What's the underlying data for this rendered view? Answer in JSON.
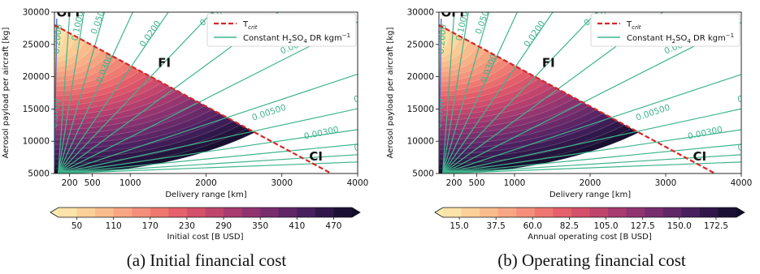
{
  "chart_data": [
    {
      "type": "heatmap",
      "panel": "a",
      "caption": "(a) Initial financial cost",
      "xlabel": "Delivery range [km]",
      "ylabel": "Aerosol payload per aircraft [kg]",
      "xlim": [
        0,
        4000
      ],
      "ylim": [
        5000,
        30000
      ],
      "x_ticks": [
        200,
        500,
        1000,
        2000,
        3000,
        4000
      ],
      "y_ticks": [
        5000,
        10000,
        15000,
        20000,
        25000,
        30000
      ],
      "t_crit_line": {
        "x": [
          0,
          3650
        ],
        "y": [
          28000,
          5000
        ]
      },
      "markers": [
        {
          "label": "OFI",
          "x": 180,
          "y": 29300
        },
        {
          "label": "FI",
          "x": 1450,
          "y": 21500
        },
        {
          "label": "CI",
          "x": 3450,
          "y": 7000
        }
      ],
      "legend": [
        {
          "label": "T",
          "sub": "crit",
          "style": "dashed",
          "color": "#d62728"
        },
        {
          "label": "Constant H",
          "sub1": "2",
          "mid": "SO",
          "sub2": "4",
          "tail": " DR kgm",
          "sup": "−1",
          "style": "solid",
          "color": "#3fb58c"
        }
      ],
      "contour_labels": [
        {
          "text": "0.2000",
          "x": 60,
          "y": 23500,
          "rot": -85
        },
        {
          "text": "0.1000",
          "x": 300,
          "y": 25500,
          "rot": -78
        },
        {
          "text": "0.0500",
          "x": 550,
          "y": 26500,
          "rot": -70
        },
        {
          "text": "0.0200",
          "x": 1180,
          "y": 24500,
          "rot": -55
        },
        {
          "text": "0.0100",
          "x": 1950,
          "y": 27800,
          "rot": -33
        },
        {
          "text": "0.0070",
          "x": 3000,
          "y": 23500,
          "rot": -22
        },
        {
          "text": "0.0300",
          "x": 620,
          "y": 19000,
          "rot": -68
        },
        {
          "text": "0.0700",
          "x": 30,
          "y": 12000,
          "rot": -85
        },
        {
          "text": "0.00500",
          "x": 2620,
          "y": 13200,
          "rot": -18
        },
        {
          "text": "0.00300",
          "x": 3300,
          "y": 10300,
          "rot": -12
        },
        {
          "text": "0.0",
          "x": 3960,
          "y": 8500,
          "rot": -10
        },
        {
          "text": "0.",
          "x": 3960,
          "y": 16000,
          "rot": -14
        }
      ],
      "colorbar": {
        "label": "Initial cost [B USD]",
        "ticks": [
          "50",
          "110",
          "170",
          "230",
          "290",
          "350",
          "410",
          "470"
        ],
        "min": 20,
        "max": 500
      }
    },
    {
      "type": "heatmap",
      "panel": "b",
      "caption": "(b) Operating financial cost",
      "xlabel": "Delivery range [km]",
      "ylabel": "Aerosol payload per aircraft [kg]",
      "xlim": [
        0,
        4000
      ],
      "ylim": [
        5000,
        30000
      ],
      "x_ticks": [
        200,
        500,
        1000,
        2000,
        3000,
        4000
      ],
      "y_ticks": [
        5000,
        10000,
        15000,
        20000,
        25000,
        30000
      ],
      "t_crit_line": {
        "x": [
          0,
          3650
        ],
        "y": [
          28000,
          5000
        ]
      },
      "markers": [
        {
          "label": "OFI",
          "x": 180,
          "y": 29300
        },
        {
          "label": "FI",
          "x": 1450,
          "y": 21500
        },
        {
          "label": "CI",
          "x": 3450,
          "y": 7000
        }
      ],
      "legend": [
        {
          "label": "T",
          "sub": "crit",
          "style": "dashed",
          "color": "#d62728"
        },
        {
          "label": "Constant H",
          "sub1": "2",
          "mid": "SO",
          "sub2": "4",
          "tail": " DR kgm",
          "sup": "−1",
          "style": "solid",
          "color": "#3fb58c"
        }
      ],
      "contour_labels": [
        {
          "text": "0.2000",
          "x": 60,
          "y": 23500,
          "rot": -85
        },
        {
          "text": "0.1000",
          "x": 300,
          "y": 25500,
          "rot": -78
        },
        {
          "text": "0.0500",
          "x": 550,
          "y": 26500,
          "rot": -70
        },
        {
          "text": "0.0200",
          "x": 1180,
          "y": 24500,
          "rot": -55
        },
        {
          "text": "0.0100",
          "x": 1950,
          "y": 27800,
          "rot": -33
        },
        {
          "text": "0.0070",
          "x": 3000,
          "y": 23500,
          "rot": -22
        },
        {
          "text": "0.0300",
          "x": 620,
          "y": 19000,
          "rot": -68
        },
        {
          "text": "0.0700",
          "x": 30,
          "y": 12000,
          "rot": -85
        },
        {
          "text": "0.00500",
          "x": 2620,
          "y": 13200,
          "rot": -18
        },
        {
          "text": "0.00300",
          "x": 3300,
          "y": 10300,
          "rot": -12
        },
        {
          "text": "0.0",
          "x": 3960,
          "y": 8500,
          "rot": -10
        },
        {
          "text": "0.",
          "x": 3960,
          "y": 16000,
          "rot": -14
        }
      ],
      "colorbar": {
        "label": "Annual operating cost [B USD]",
        "ticks": [
          "15.0",
          "37.5",
          "60.0",
          "82.5",
          "105.0",
          "127.5",
          "150.0",
          "172.5"
        ],
        "min": 5,
        "max": 185
      }
    }
  ],
  "colors": {
    "t_crit": "#d62728",
    "contour": "#3fb58c",
    "colormap": [
      "#fcecb3",
      "#fbd49b",
      "#f9b88a",
      "#f59b7e",
      "#ef7c72",
      "#e35d6a",
      "#cb4a6c",
      "#ac3c6f",
      "#8c3370",
      "#6c2a6b",
      "#4b2160",
      "#2c1746",
      "#120d2a"
    ]
  }
}
